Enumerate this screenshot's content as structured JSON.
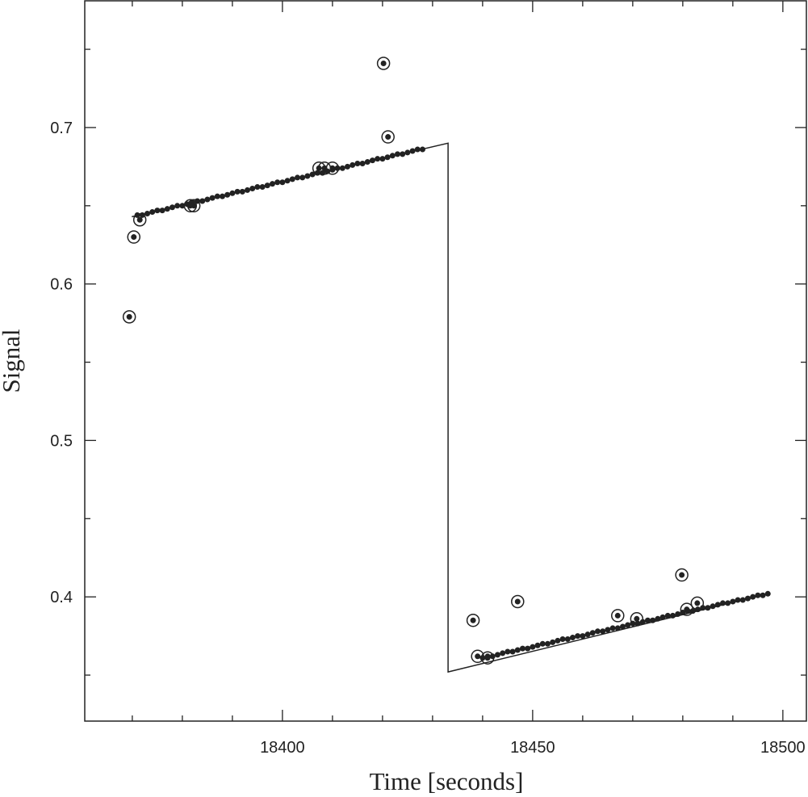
{
  "chart_data": {
    "type": "scatter",
    "xlabel": "Time [seconds]",
    "ylabel": "Signal",
    "xlim": [
      18360.5,
      18504.7
    ],
    "ylim": [
      0.3206,
      0.781
    ],
    "xticks": [
      18400,
      18450,
      18500
    ],
    "yticks": [
      0.4,
      0.5,
      0.6,
      0.7
    ],
    "xminorticks": [
      18370,
      18380,
      18390,
      18410,
      18420,
      18430,
      18440,
      18460,
      18470,
      18480,
      18490
    ],
    "yminorticks": [
      0.35,
      0.45,
      0.55,
      0.65,
      0.75
    ],
    "series": [
      {
        "color": "#222222",
        "x": [
          18371,
          18372,
          18373,
          18374,
          18375,
          18376,
          18377,
          18378,
          18379,
          18380,
          18381,
          18382,
          18383,
          18384,
          18385,
          18386,
          18387,
          18388,
          18389,
          18390,
          18391,
          18392,
          18393,
          18394,
          18395,
          18396,
          18397,
          18398,
          18399,
          18400,
          18401,
          18402,
          18403,
          18404,
          18405,
          18406,
          18407,
          18408,
          18409,
          18410,
          18411,
          18412,
          18413,
          18414,
          18415,
          18416,
          18417,
          18418,
          18419,
          18420,
          18421,
          18422,
          18423,
          18424,
          18425,
          18426,
          18427,
          18428,
          18440,
          18441,
          18442,
          18443,
          18444,
          18445,
          18446,
          18447,
          18448,
          18449,
          18450,
          18451,
          18452,
          18453,
          18454,
          18455,
          18456,
          18457,
          18458,
          18459,
          18460,
          18461,
          18462,
          18463,
          18464,
          18465,
          18466,
          18467,
          18468,
          18469,
          18470,
          18471,
          18472,
          18473,
          18474,
          18475,
          18476,
          18477,
          18478,
          18479,
          18480,
          18481,
          18482,
          18483,
          18484,
          18485,
          18486,
          18487,
          18488,
          18489,
          18490,
          18491,
          18492,
          18493,
          18494,
          18495,
          18496,
          18497
        ],
        "values": [
          0.644,
          0.644,
          0.645,
          0.646,
          0.647,
          0.647,
          0.648,
          0.649,
          0.65,
          0.65,
          0.651,
          0.652,
          0.653,
          0.653,
          0.654,
          0.655,
          0.656,
          0.656,
          0.657,
          0.658,
          0.659,
          0.659,
          0.66,
          0.661,
          0.662,
          0.662,
          0.663,
          0.664,
          0.665,
          0.665,
          0.666,
          0.667,
          0.668,
          0.668,
          0.669,
          0.67,
          0.671,
          0.671,
          0.672,
          0.673,
          0.674,
          0.674,
          0.675,
          0.676,
          0.677,
          0.677,
          0.678,
          0.679,
          0.68,
          0.68,
          0.681,
          0.682,
          0.683,
          0.683,
          0.684,
          0.685,
          0.686,
          0.686,
          0.361,
          0.362,
          0.362,
          0.363,
          0.364,
          0.365,
          0.365,
          0.366,
          0.367,
          0.367,
          0.368,
          0.369,
          0.37,
          0.37,
          0.371,
          0.372,
          0.373,
          0.373,
          0.374,
          0.375,
          0.375,
          0.376,
          0.377,
          0.378,
          0.378,
          0.379,
          0.38,
          0.38,
          0.381,
          0.382,
          0.383,
          0.383,
          0.384,
          0.385,
          0.385,
          0.386,
          0.387,
          0.388,
          0.388,
          0.389,
          0.39,
          0.391,
          0.391,
          0.392,
          0.393,
          0.393,
          0.394,
          0.395,
          0.396,
          0.396,
          0.397,
          0.398,
          0.398,
          0.399,
          0.4,
          0.401,
          0.401,
          0.402
        ]
      },
      {
        "color": "#222222",
        "marker": "circled",
        "x": [
          18369.4,
          18370.3,
          18371.5,
          18381.6,
          18382.3,
          18407.3,
          18408.4,
          18410.0,
          18420.2,
          18421.1,
          18438.1,
          18439.0,
          18441.0,
          18447.0,
          18467.0,
          18470.8,
          18479.8,
          18480.8,
          18482.9
        ],
        "values": [
          0.579,
          0.63,
          0.641,
          0.65,
          0.65,
          0.674,
          0.674,
          0.674,
          0.741,
          0.694,
          0.385,
          0.362,
          0.361,
          0.397,
          0.388,
          0.386,
          0.414,
          0.392,
          0.396
        ]
      }
    ],
    "line": {
      "color": "#222222",
      "x": [
        18369.9,
        18433.1,
        18433.1,
        18497.1
      ],
      "values": [
        0.643,
        0.69,
        0.352,
        0.402
      ]
    }
  }
}
